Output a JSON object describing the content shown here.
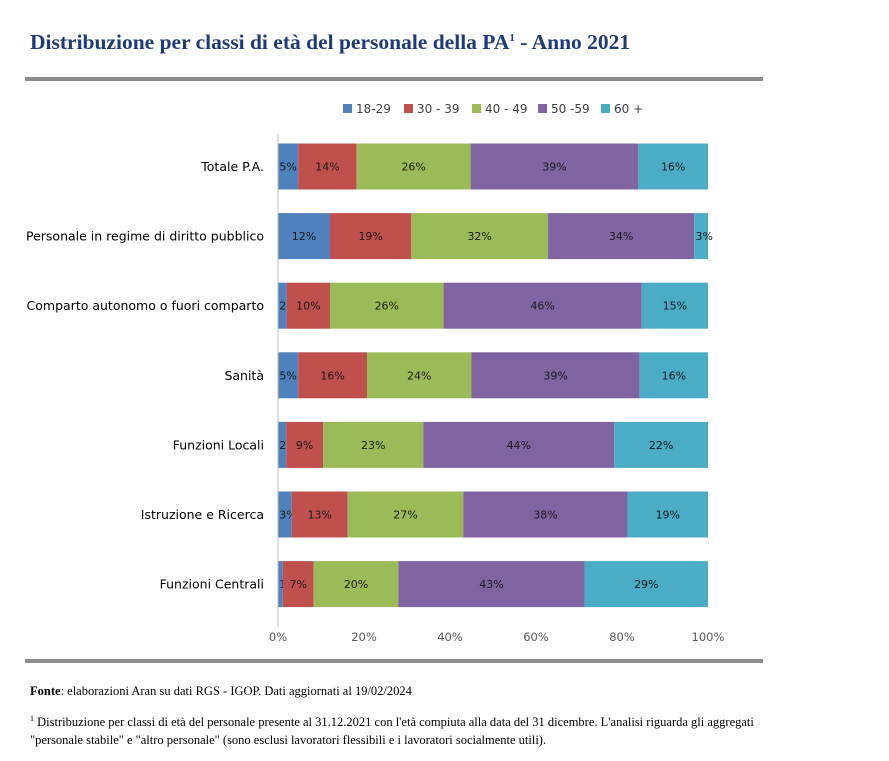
{
  "title": {
    "main": "Distribuzione per classi di età del personale della PA",
    "superscript": "1",
    "suffix": " - Anno 2021"
  },
  "source": {
    "label": "Fonte",
    "text": ": elaborazioni Aran su dati RGS - IGOP. Dati aggiornati al 19/02/2024"
  },
  "footnote": {
    "marker": "1",
    "text": " Distribuzione per classi di età del personale presente al 31.12.2021 con l'età compiuta alla data del 31 dicembre. L'analisi riguarda gli aggregati \"personale stabile\" e \"altro personale\" (sono esclusi lavoratori flessibili e i lavoratori socialmente utili)."
  },
  "chart_data": {
    "type": "bar",
    "orientation": "horizontal",
    "stacked": true,
    "normalized": true,
    "title": "",
    "xlabel": "",
    "ylabel": "",
    "xlim": [
      0,
      100
    ],
    "xticks": [
      "0%",
      "20%",
      "40%",
      "60%",
      "80%",
      "100%"
    ],
    "legend_position": "top",
    "grid": false,
    "categories": [
      "Totale P.A.",
      "Personale in regime di diritto pubblico",
      "Comparto autonomo o fuori comparto",
      "Sanità",
      "Funzioni Locali",
      "Istruzione e Ricerca",
      "Funzioni Centrali"
    ],
    "series": [
      {
        "name": "18-29",
        "color": "#4f81bd",
        "values": [
          4.7,
          12.1,
          2.0,
          4.7,
          1.9,
          3.2,
          1.1
        ],
        "labels": [
          "5%",
          "12%",
          "2%",
          "5%",
          "2%",
          "3%",
          "1%"
        ]
      },
      {
        "name": "30 - 39",
        "color": "#c0504d",
        "values": [
          13.6,
          18.9,
          10.1,
          16.0,
          8.6,
          13.0,
          7.2
        ],
        "labels": [
          "14%",
          "19%",
          "10%",
          "16%",
          "9%",
          "13%",
          "7%"
        ]
      },
      {
        "name": "40 - 49",
        "color": "#9bbb59",
        "values": [
          26.5,
          31.8,
          26.4,
          24.3,
          23.3,
          26.9,
          19.7
        ],
        "labels": [
          "26%",
          "32%",
          "26%",
          "24%",
          "23%",
          "27%",
          "20%"
        ]
      },
      {
        "name": "50 -59",
        "color": "#8064a2",
        "values": [
          39.0,
          34.0,
          46.1,
          39.1,
          44.4,
          38.2,
          43.3
        ],
        "labels": [
          "39%",
          "34%",
          "46%",
          "39%",
          "44%",
          "38%",
          "43%"
        ]
      },
      {
        "name": "60 +",
        "color": "#4bacc6",
        "values": [
          16.2,
          3.2,
          15.4,
          15.9,
          21.8,
          18.7,
          28.7
        ],
        "labels": [
          "16%",
          "3%",
          "15%",
          "16%",
          "22%",
          "19%",
          "29%"
        ]
      }
    ]
  }
}
